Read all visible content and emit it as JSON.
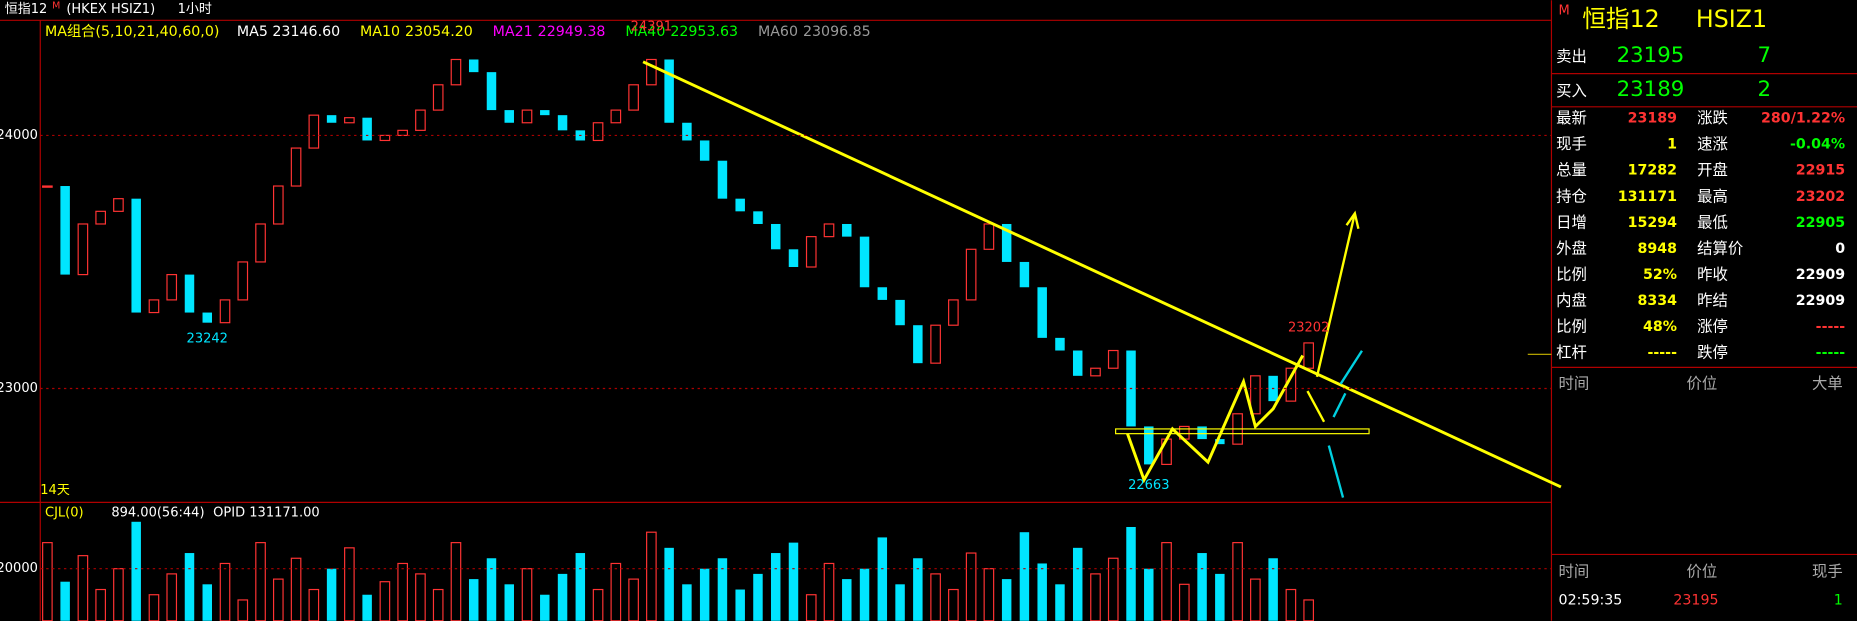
{
  "header": {
    "title": "恒指12",
    "flag": "M",
    "market": "(HKEX HSIZ1)",
    "period": "1小时"
  },
  "ma_legend": {
    "title": "MA组合(5,10,21,40,60,0)",
    "items": [
      {
        "label": "MA5",
        "value": "23146.60",
        "color": "#ffffff"
      },
      {
        "label": "MA10",
        "value": "23054.20",
        "color": "#ffff00"
      },
      {
        "label": "MA21",
        "value": "22949.38",
        "color": "#ff00ff"
      },
      {
        "label": "MA40",
        "value": "22953.63",
        "color": "#00ff00"
      },
      {
        "label": "MA60",
        "value": "23096.85",
        "color": "#999999"
      }
    ]
  },
  "price_axis": {
    "ylim": [
      22550,
      24450
    ],
    "yticks": [
      {
        "value": 24000,
        "label": "24000"
      },
      {
        "value": 23000,
        "label": "23000"
      }
    ]
  },
  "annotations": [
    {
      "text": "24391",
      "value": 24391,
      "index": 34,
      "color": "#ff3333"
    },
    {
      "text": "23242",
      "value": 23242,
      "index": 9,
      "color": "#00e5ff"
    },
    {
      "text": "22663",
      "value": 22663,
      "index": 62,
      "color": "#00e5ff"
    },
    {
      "text": "23202",
      "value": 23202,
      "index": 71,
      "color": "#ff3333"
    }
  ],
  "range_label": "14天",
  "candles": {
    "close": [
      23800,
      23450,
      23650,
      23700,
      23750,
      23300,
      23350,
      23450,
      23300,
      23260,
      23350,
      23500,
      23650,
      23800,
      23950,
      24080,
      24050,
      24070,
      23980,
      24000,
      24020,
      24100,
      24200,
      24300,
      24250,
      24100,
      24050,
      24100,
      24080,
      24020,
      23980,
      24050,
      24100,
      24200,
      24300,
      24050,
      23980,
      23900,
      23750,
      23700,
      23650,
      23550,
      23480,
      23600,
      23650,
      23600,
      23400,
      23350,
      23250,
      23100,
      23250,
      23350,
      23550,
      23650,
      23500,
      23400,
      23200,
      23150,
      23050,
      23080,
      23150,
      22850,
      22700,
      22800,
      22850,
      22800,
      22780,
      22900,
      23050,
      22950,
      23080,
      23180
    ],
    "volume": [
      30000,
      15000,
      25000,
      12000,
      20000,
      38000,
      10000,
      18000,
      26000,
      14000,
      22000,
      8000,
      30000,
      16000,
      24000,
      12000,
      20000,
      28000,
      10000,
      15000,
      22000,
      18000,
      12000,
      30000,
      16000,
      24000,
      14000,
      20000,
      10000,
      18000,
      26000,
      12000,
      22000,
      16000,
      34000,
      28000,
      14000,
      20000,
      24000,
      12000,
      18000,
      26000,
      30000,
      10000,
      22000,
      16000,
      20000,
      32000,
      14000,
      24000,
      18000,
      12000,
      26000,
      20000,
      16000,
      34000,
      22000,
      14000,
      28000,
      18000,
      24000,
      36000,
      20000,
      30000,
      14000,
      26000,
      18000,
      30000,
      16000,
      24000,
      12000,
      8000
    ]
  },
  "volume_panel": {
    "label": "CJL(0)",
    "reading": "894.00(56:44)",
    "opid": "OPID 131171.00",
    "ylim": [
      0,
      45000
    ],
    "yticks": [
      {
        "value": 20000,
        "label": "20000"
      }
    ]
  },
  "quote": {
    "flag": "M",
    "name": "恒指12",
    "code": "HSIZ1",
    "sell": {
      "label": "卖出",
      "price": "23195",
      "size": "7"
    },
    "buy": {
      "label": "买入",
      "price": "23189",
      "size": "2"
    },
    "rows": [
      [
        {
          "label": "最新",
          "value": "23189",
          "color": "#ff3333"
        },
        {
          "label": "涨跌",
          "value": "280/1.22%",
          "color": "#ff3333"
        }
      ],
      [
        {
          "label": "现手",
          "value": "1",
          "color": "#ffff00"
        },
        {
          "label": "速涨",
          "value": "-0.04%",
          "color": "#00ff00"
        }
      ],
      [
        {
          "label": "总量",
          "value": "17282",
          "color": "#ffff00"
        },
        {
          "label": "开盘",
          "value": "22915",
          "color": "#ff3333"
        }
      ],
      [
        {
          "label": "持仓",
          "value": "131171",
          "color": "#ffff00"
        },
        {
          "label": "最高",
          "value": "23202",
          "color": "#ff3333"
        }
      ],
      [
        {
          "label": "日增",
          "value": "15294",
          "color": "#ffff00"
        },
        {
          "label": "最低",
          "value": "22905",
          "color": "#00ff00"
        }
      ],
      [
        {
          "label": "外盘",
          "value": "8948",
          "color": "#ffff00"
        },
        {
          "label": "结算价",
          "value": "0",
          "color": "#ffffff"
        }
      ],
      [
        {
          "label": "比例",
          "value": "52%",
          "color": "#ffff00"
        },
        {
          "label": "昨收",
          "value": "22909",
          "color": "#ffffff"
        }
      ],
      [
        {
          "label": "内盘",
          "value": "8334",
          "color": "#ffff00"
        },
        {
          "label": "昨结",
          "value": "22909",
          "color": "#ffffff"
        }
      ],
      [
        {
          "label": "比例",
          "value": "48%",
          "color": "#ffff00"
        },
        {
          "label": "涨停",
          "value": "-----",
          "color": "#ff3333"
        }
      ],
      [
        {
          "label": "杠杆",
          "value": "-----",
          "color": "#ffff00"
        },
        {
          "label": "跌停",
          "value": "-----",
          "color": "#00ff00"
        }
      ]
    ],
    "ticks_header": [
      "时间",
      "价位",
      "大单"
    ],
    "trades_header": [
      "时间",
      "价位",
      "现手"
    ],
    "trade": {
      "time": "02:59:35",
      "price": "23195",
      "size": "1"
    }
  }
}
